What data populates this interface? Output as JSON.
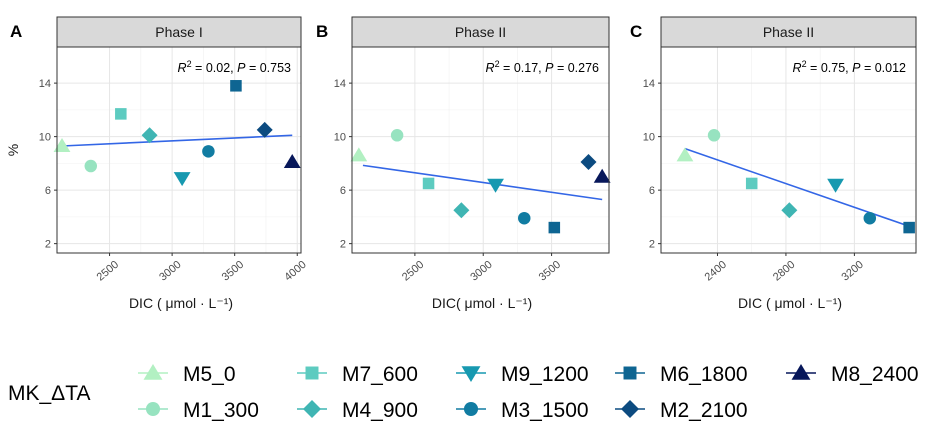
{
  "colors": {
    "M5_0": "#b2f0c2",
    "M1_300": "#97e3c0",
    "M7_600": "#5dcbc0",
    "M4_900": "#3fb5b3",
    "M9_1200": "#1799b0",
    "M3_1500": "#117ca2",
    "M6_1800": "#0e6592",
    "M2_2100": "#0c4b80",
    "M8_2400": "#07175a",
    "fit_line": "#3366e6",
    "strip_bg": "#d9d9d9"
  },
  "legend": {
    "title": "MK_ΔTA",
    "entries": [
      {
        "label": "M5_0",
        "shape": "triangle-up"
      },
      {
        "label": "M1_300",
        "shape": "circle"
      },
      {
        "label": "M7_600",
        "shape": "square"
      },
      {
        "label": "M4_900",
        "shape": "diamond"
      },
      {
        "label": "M9_1200",
        "shape": "triangle-down"
      },
      {
        "label": "M3_1500",
        "shape": "circle"
      },
      {
        "label": "M6_1800",
        "shape": "square"
      },
      {
        "label": "M2_2100",
        "shape": "diamond"
      },
      {
        "label": "M8_2400",
        "shape": "triangle-up"
      }
    ]
  },
  "chart_data": [
    {
      "type": "scatter",
      "panel_letter": "A",
      "strip": "Phase I",
      "xlabel": "DIC ( μmol · L⁻¹)",
      "ylabel": "%",
      "stat_r2": "0.02",
      "stat_p": "0.753",
      "xlim": [
        2080,
        4030
      ],
      "ylim": [
        1.3,
        16.7
      ],
      "xticks": [
        2500,
        3000,
        3500,
        4000
      ],
      "yticks": [
        2,
        6,
        10,
        14
      ],
      "grid": true,
      "points": [
        {
          "series": "M5_0",
          "x": 2120,
          "y": 9.3
        },
        {
          "series": "M1_300",
          "x": 2350,
          "y": 7.8
        },
        {
          "series": "M7_600",
          "x": 2590,
          "y": 11.7
        },
        {
          "series": "M4_900",
          "x": 2820,
          "y": 10.1
        },
        {
          "series": "M9_1200",
          "x": 3080,
          "y": 6.9
        },
        {
          "series": "M3_1500",
          "x": 3290,
          "y": 8.9
        },
        {
          "series": "M6_1800",
          "x": 3510,
          "y": 13.8
        },
        {
          "series": "M2_2100",
          "x": 3740,
          "y": 10.5
        },
        {
          "series": "M8_2400",
          "x": 3960,
          "y": 8.1
        }
      ],
      "fit": {
        "x": [
          2120,
          3960
        ],
        "y": [
          9.3,
          10.1
        ]
      }
    },
    {
      "type": "scatter",
      "panel_letter": "B",
      "strip": "Phase II",
      "xlabel": "DIC( μmol · L⁻¹)",
      "ylabel": "",
      "stat_r2": "0.17",
      "stat_p": "0.276",
      "xlim": [
        2040,
        3920
      ],
      "ylim": [
        1.3,
        16.7
      ],
      "xticks": [
        2500,
        3000,
        3500
      ],
      "yticks": [
        2,
        6,
        10,
        14
      ],
      "grid": true,
      "points": [
        {
          "series": "M5_0",
          "x": 2090,
          "y": 8.6
        },
        {
          "series": "M1_300",
          "x": 2370,
          "y": 10.1
        },
        {
          "series": "M7_600",
          "x": 2600,
          "y": 6.5
        },
        {
          "series": "M4_900",
          "x": 2840,
          "y": 4.5
        },
        {
          "series": "M9_1200",
          "x": 3090,
          "y": 6.4
        },
        {
          "series": "M3_1500",
          "x": 3300,
          "y": 3.9
        },
        {
          "series": "M6_1800",
          "x": 3520,
          "y": 3.2
        },
        {
          "series": "M2_2100",
          "x": 3770,
          "y": 8.1
        },
        {
          "series": "M8_2400",
          "x": 3870,
          "y": 7.0
        }
      ],
      "fit": {
        "x": [
          2120,
          3870
        ],
        "y": [
          7.85,
          5.3
        ]
      }
    },
    {
      "type": "scatter",
      "panel_letter": "C",
      "strip": "Phase II",
      "xlabel": "DIC ( μmol · L⁻¹)",
      "ylabel": "",
      "stat_r2": "0.75",
      "stat_p": "0.012",
      "xlim": [
        2070,
        3560
      ],
      "ylim": [
        1.3,
        16.7
      ],
      "xticks": [
        2400,
        2800,
        3200
      ],
      "yticks": [
        2,
        6,
        10,
        14
      ],
      "grid": true,
      "points": [
        {
          "series": "M5_0",
          "x": 2210,
          "y": 8.6
        },
        {
          "series": "M1_300",
          "x": 2380,
          "y": 10.1
        },
        {
          "series": "M7_600",
          "x": 2600,
          "y": 6.5
        },
        {
          "series": "M4_900",
          "x": 2820,
          "y": 4.5
        },
        {
          "series": "M9_1200",
          "x": 3090,
          "y": 6.4
        },
        {
          "series": "M3_1500",
          "x": 3290,
          "y": 3.9
        },
        {
          "series": "M6_1800",
          "x": 3520,
          "y": 3.2
        }
      ],
      "fit": {
        "x": [
          2210,
          3520
        ],
        "y": [
          9.1,
          3.3
        ]
      }
    }
  ]
}
